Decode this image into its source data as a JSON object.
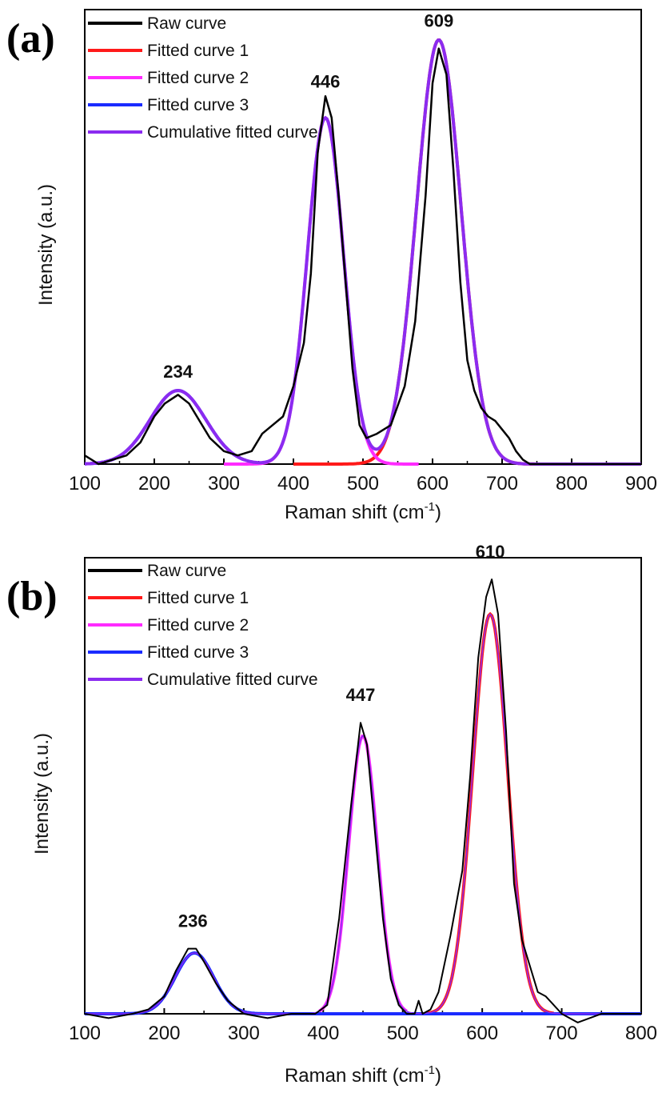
{
  "chart_data": [
    {
      "panel_label": "(a)",
      "type": "line",
      "xlabel": "Raman shift (cm",
      "xlabel_sup": "-1",
      "xlabel_close": ")",
      "ylabel": "Intensity (a.u.)",
      "xlim": [
        100,
        900
      ],
      "ylim": [
        0,
        1.05
      ],
      "xticks": [
        "100",
        "200",
        "300",
        "400",
        "500",
        "600",
        "700",
        "800",
        "900"
      ],
      "raw_curve": {
        "name": "Raw curve",
        "x": [
          100,
          120,
          140,
          160,
          180,
          200,
          215,
          234,
          250,
          265,
          280,
          300,
          320,
          340,
          355,
          370,
          385,
          400,
          415,
          425,
          435,
          446,
          455,
          465,
          475,
          485,
          495,
          505,
          520,
          540,
          560,
          575,
          590,
          600,
          609,
          620,
          630,
          640,
          650,
          660,
          670,
          680,
          690,
          700,
          710,
          720,
          730,
          740,
          760,
          780,
          800,
          850,
          900
        ],
        "y": [
          0.02,
          0.0,
          0.01,
          0.02,
          0.05,
          0.11,
          0.14,
          0.16,
          0.14,
          0.1,
          0.06,
          0.03,
          0.02,
          0.03,
          0.07,
          0.09,
          0.11,
          0.18,
          0.28,
          0.44,
          0.72,
          0.85,
          0.8,
          0.62,
          0.42,
          0.22,
          0.09,
          0.06,
          0.07,
          0.09,
          0.18,
          0.33,
          0.62,
          0.88,
          0.96,
          0.9,
          0.68,
          0.42,
          0.24,
          0.17,
          0.13,
          0.11,
          0.1,
          0.08,
          0.06,
          0.03,
          0.01,
          0.0,
          0.0,
          0.0,
          0.0,
          0.0,
          0.0
        ]
      },
      "fitted_curves": [
        {
          "name": "Fitted curve 1",
          "color": "#ff1a1a",
          "center": 609,
          "amplitude": 0.98,
          "width": 32,
          "x_range": [
            400,
            800
          ]
        },
        {
          "name": "Fitted curve 2",
          "color": "#ff2bff",
          "center": 446,
          "amplitude": 0.8,
          "width": 26,
          "x_range": [
            300,
            580
          ]
        },
        {
          "name": "Fitted curve 3",
          "color": "#1a2bff",
          "center": 234,
          "amplitude": 0.17,
          "width": 40,
          "x_range": [
            100,
            330
          ]
        }
      ],
      "cumulative_curve": {
        "name": "Cumulative fitted curve",
        "color": "#8b2bf0"
      },
      "legend": [
        {
          "label": "Raw curve",
          "color": "#000000"
        },
        {
          "label": "Fitted curve 1",
          "color": "#ff1a1a"
        },
        {
          "label": "Fitted curve 2",
          "color": "#ff2bff"
        },
        {
          "label": "Fitted curve 3",
          "color": "#1a2bff"
        },
        {
          "label": "Cumulative fitted curve",
          "color": "#8b2bf0"
        }
      ],
      "legend_position": "top-left",
      "peak_labels": [
        {
          "text": "234",
          "x": 234,
          "y": 0.2
        },
        {
          "text": "446",
          "x": 446,
          "y": 0.87
        },
        {
          "text": "609",
          "x": 609,
          "y": 1.01
        }
      ]
    },
    {
      "panel_label": "(b)",
      "type": "line",
      "xlabel": "Raman shift (cm",
      "xlabel_sup": "-1",
      "xlabel_close": ")",
      "ylabel": "Intensity (a.u.)",
      "xlim": [
        100,
        800
      ],
      "ylim": [
        0,
        1.05
      ],
      "xticks": [
        "100",
        "200",
        "300",
        "400",
        "500",
        "600",
        "700",
        "800"
      ],
      "raw_curve": {
        "name": "Raw curve",
        "x": [
          100,
          130,
          160,
          180,
          200,
          215,
          230,
          240,
          250,
          265,
          280,
          300,
          330,
          360,
          390,
          405,
          420,
          435,
          447,
          455,
          465,
          475,
          485,
          495,
          505,
          515,
          520,
          525,
          535,
          545,
          560,
          575,
          585,
          595,
          605,
          612,
          620,
          630,
          640,
          650,
          660,
          670,
          680,
          690,
          700,
          720,
          750,
          780,
          800
        ],
        "y": [
          0.0,
          -0.01,
          0.0,
          0.01,
          0.04,
          0.1,
          0.15,
          0.15,
          0.12,
          0.07,
          0.03,
          0.0,
          -0.01,
          0.0,
          0.0,
          0.02,
          0.22,
          0.48,
          0.67,
          0.62,
          0.42,
          0.22,
          0.08,
          0.02,
          0.0,
          0.0,
          0.03,
          0.0,
          0.01,
          0.05,
          0.18,
          0.33,
          0.55,
          0.82,
          0.96,
          1.0,
          0.92,
          0.65,
          0.3,
          0.17,
          0.11,
          0.05,
          0.04,
          0.02,
          0.0,
          -0.02,
          0.0,
          0.0,
          0.0
        ]
      },
      "fitted_curves": [
        {
          "name": "Fitted curve 1",
          "color": "#ff1a1a",
          "center": 610,
          "amplitude": 0.92,
          "width": 22,
          "x_range": [
            530,
            690
          ]
        },
        {
          "name": "Fitted curve 2",
          "color": "#ff2bff",
          "center": 450,
          "amplitude": 0.64,
          "width": 18,
          "x_range": [
            395,
            505
          ]
        },
        {
          "name": "Fitted curve 3",
          "color": "#1a2bff",
          "center": 238,
          "amplitude": 0.14,
          "width": 24,
          "x_range": [
            100,
            800
          ]
        }
      ],
      "cumulative_curve": {
        "name": "Cumulative fitted curve",
        "color": "#8b2bf0"
      },
      "legend": [
        {
          "label": "Raw curve",
          "color": "#000000"
        },
        {
          "label": "Fitted curve 1",
          "color": "#ff1a1a"
        },
        {
          "label": "Fitted curve 2",
          "color": "#ff2bff"
        },
        {
          "label": "Fitted curve 3",
          "color": "#1a2bff"
        },
        {
          "label": "Cumulative fitted curve",
          "color": "#8b2bf0"
        }
      ],
      "legend_position": "top-left",
      "peak_labels": [
        {
          "text": "236",
          "x": 236,
          "y": 0.2
        },
        {
          "text": "447",
          "x": 447,
          "y": 0.72
        },
        {
          "text": "610",
          "x": 610,
          "y": 1.05
        }
      ]
    }
  ]
}
